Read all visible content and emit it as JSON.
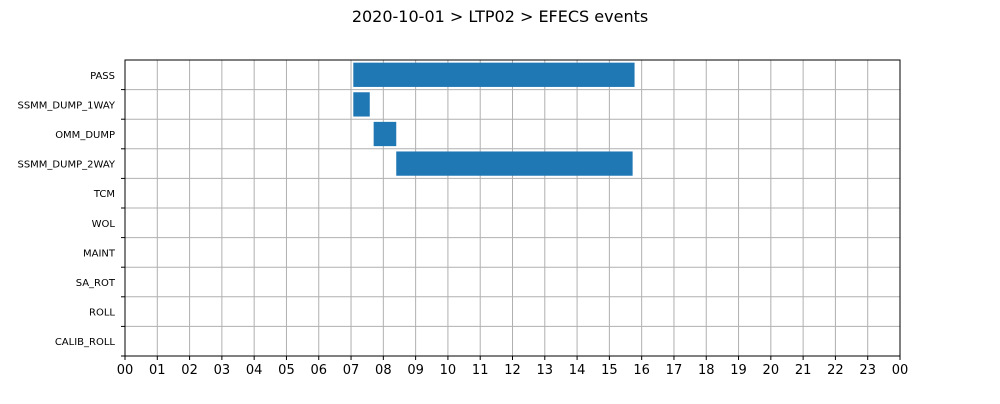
{
  "chart_data": {
    "type": "gantt",
    "title": "2020-10-01 > LTP02 > EFECS events",
    "xlabel": "",
    "ylabel": "",
    "x_unit": "hour of day",
    "xlim": [
      0,
      24
    ],
    "x_ticks": [
      0,
      1,
      2,
      3,
      4,
      5,
      6,
      7,
      8,
      9,
      10,
      11,
      12,
      13,
      14,
      15,
      16,
      17,
      18,
      19,
      20,
      21,
      22,
      23,
      24
    ],
    "x_tick_labels": [
      "00",
      "01",
      "02",
      "03",
      "04",
      "05",
      "06",
      "07",
      "08",
      "09",
      "10",
      "11",
      "12",
      "13",
      "14",
      "15",
      "16",
      "17",
      "18",
      "19",
      "20",
      "21",
      "22",
      "23",
      "00"
    ],
    "categories": [
      "PASS",
      "SSMM_DUMP_1WAY",
      "OMM_DUMP",
      "SSMM_DUMP_2WAY",
      "TCM",
      "WOL",
      "MAINT",
      "SA_ROT",
      "ROLL",
      "CALIB_ROLL"
    ],
    "events": [
      {
        "category": "PASS",
        "start": 7.07,
        "end": 15.78
      },
      {
        "category": "SSMM_DUMP_1WAY",
        "start": 7.07,
        "end": 7.58
      },
      {
        "category": "OMM_DUMP",
        "start": 7.7,
        "end": 8.4
      },
      {
        "category": "SSMM_DUMP_2WAY",
        "start": 8.4,
        "end": 15.72
      }
    ],
    "grid": true,
    "bar_color": "#1f77b4",
    "grid_color": "#b0b0b0"
  }
}
